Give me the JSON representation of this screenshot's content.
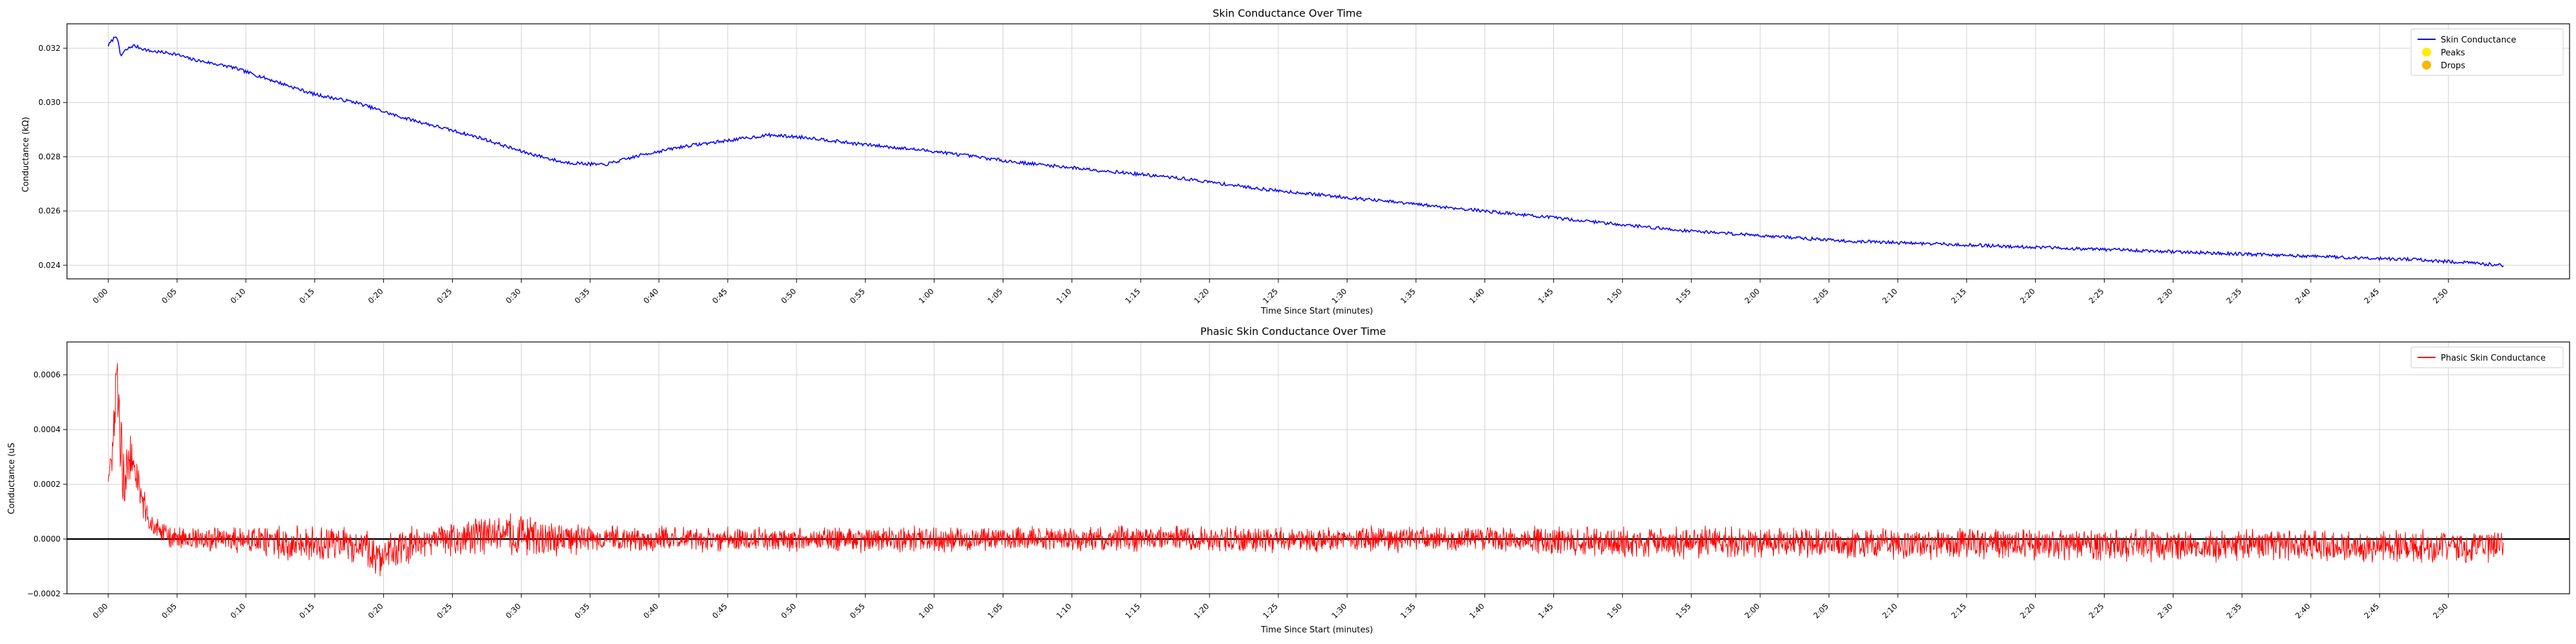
{
  "chart_data": [
    {
      "type": "line",
      "title": "Skin Conductance Over Time",
      "xlabel": "Time Since Start (minutes)",
      "ylabel": "Conductance (kΩ)",
      "xlim": [
        -0.05,
        2.98
      ],
      "ylim": [
        0.0235,
        0.0329
      ],
      "grid": true,
      "legend": "top-right",
      "x_ticks": [
        "0:00",
        "0:05",
        "0:10",
        "0:15",
        "0:20",
        "0:25",
        "0:30",
        "0:35",
        "0:40",
        "0:45",
        "0:50",
        "0:55",
        "1:00",
        "1:05",
        "1:10",
        "1:15",
        "1:20",
        "1:25",
        "1:30",
        "1:35",
        "1:40",
        "1:45",
        "1:50",
        "1:55",
        "2:00",
        "2:05",
        "2:10",
        "2:15",
        "2:20",
        "2:25",
        "2:30",
        "2:35",
        "2:40",
        "2:45",
        "2:50"
      ],
      "y_ticks": [
        0.024,
        0.026,
        0.028,
        0.03,
        0.032
      ],
      "y_tick_labels": [
        "0.024",
        "0.026",
        "0.028",
        "0.030",
        "0.032"
      ],
      "legend_entries": [
        {
          "label": "Skin Conductance",
          "kind": "line",
          "color": "#0000ff"
        },
        {
          "label": "Peaks",
          "kind": "marker",
          "color": "#ffee00"
        },
        {
          "label": "Drops",
          "kind": "marker",
          "color": "#f5b800"
        }
      ],
      "series": [
        {
          "name": "Skin Conductance",
          "color": "#0000ff",
          "x": [
            0.0,
            0.01,
            0.015,
            0.02,
            0.03,
            0.05,
            0.08,
            0.1,
            0.15,
            0.2,
            0.25,
            0.3,
            0.35,
            0.4,
            0.45,
            0.5,
            0.55,
            0.6,
            0.65,
            0.7,
            0.75,
            0.8,
            0.85,
            0.9,
            1.0,
            1.1,
            1.2,
            1.3,
            1.4,
            1.5,
            1.6,
            1.7,
            1.8,
            1.9,
            2.0,
            2.1,
            2.2,
            2.3,
            2.4,
            2.5,
            2.6,
            2.7,
            2.8,
            2.9
          ],
          "y": [
            0.0321,
            0.0325,
            0.0317,
            0.0319,
            0.0321,
            0.0319,
            0.0318,
            0.0316,
            0.0313,
            0.0308,
            0.0303,
            0.03,
            0.0295,
            0.0291,
            0.0287,
            0.0282,
            0.0278,
            0.0277,
            0.0281,
            0.0284,
            0.0286,
            0.0288,
            0.0287,
            0.0285,
            0.0282,
            0.0278,
            0.0275,
            0.0272,
            0.0268,
            0.0265,
            0.0262,
            0.0259,
            0.0256,
            0.0253,
            0.0251,
            0.0249,
            0.0248,
            0.0247,
            0.0246,
            0.0245,
            0.0244,
            0.0243,
            0.0242,
            0.024
          ]
        }
      ]
    },
    {
      "type": "line",
      "title": "Phasic Skin Conductance Over Time",
      "xlabel": "Time Since Start (minutes)",
      "ylabel": "Conductance (uS",
      "xlim": [
        -0.05,
        2.98
      ],
      "ylim": [
        -0.0002,
        0.00072
      ],
      "grid": true,
      "legend": "top-right",
      "zero_line": true,
      "x_ticks": [
        "0:00",
        "0:05",
        "0:10",
        "0:15",
        "0:20",
        "0:25",
        "0:30",
        "0:35",
        "0:40",
        "0:45",
        "0:50",
        "0:55",
        "1:00",
        "1:05",
        "1:10",
        "1:15",
        "1:20",
        "1:25",
        "1:30",
        "1:35",
        "1:40",
        "1:45",
        "1:50",
        "1:55",
        "2:00",
        "2:05",
        "2:10",
        "2:15",
        "2:20",
        "2:25",
        "2:30",
        "2:35",
        "2:40",
        "2:45",
        "2:50"
      ],
      "y_ticks": [
        -0.0002,
        0.0,
        0.0002,
        0.0004,
        0.0006
      ],
      "y_tick_labels": [
        "−0.0002",
        "0.0000",
        "0.0002",
        "0.0004",
        "0.0006"
      ],
      "legend_entries": [
        {
          "label": "Phasic Skin Conductance",
          "kind": "line",
          "color": "#ff0000"
        }
      ],
      "envelope": {
        "x": [
          0.0,
          0.005,
          0.01,
          0.015,
          0.02,
          0.025,
          0.03,
          0.04,
          0.05,
          0.06,
          0.08,
          0.1,
          0.3,
          0.33,
          0.36,
          0.4,
          0.5,
          0.53,
          0.6,
          1.7,
          1.75,
          2.9
        ],
        "center": [
          0.00022,
          0.0003,
          0.0006,
          0.00035,
          0.0002,
          0.0003,
          0.00028,
          0.00015,
          6e-05,
          3e-05,
          0.0,
          0.0,
          -2e-05,
          -6e-05,
          -3e-05,
          0.0,
          2e-05,
          0.0,
          0.0,
          0.0,
          -1e-05,
          -3e-05
        ],
        "amplitude": [
          3e-05,
          5e-05,
          0.0001,
          0.00015,
          0.0001,
          8e-05,
          7e-05,
          5e-05,
          4e-05,
          4e-05,
          4e-05,
          4e-05,
          6e-05,
          7e-05,
          6e-05,
          5e-05,
          7e-05,
          6e-05,
          4e-05,
          4e-05,
          5e-05,
          5e-05
        ]
      },
      "series": [
        {
          "name": "Phasic Skin Conductance",
          "color": "#ff0000"
        }
      ]
    }
  ]
}
